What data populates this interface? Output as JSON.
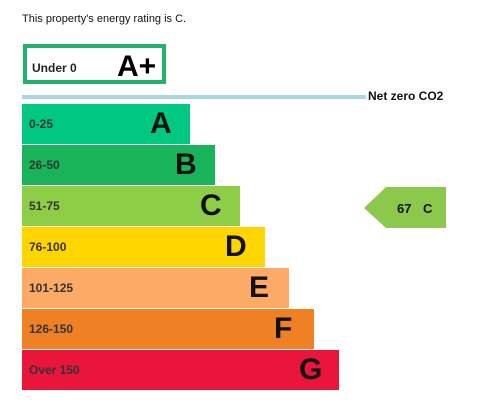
{
  "heading": "This property's energy rating is C.",
  "net_zero_label": "Net zero CO2",
  "colors": {
    "aplus_border": "#1fb36b",
    "net_zero_line": "#a8d6e3",
    "current_arrow": "#8cc84b"
  },
  "chart_data": {
    "type": "bar",
    "aplus": {
      "range": "Under 0",
      "letter": "A+"
    },
    "bands": [
      {
        "range": "0-25",
        "letter": "A",
        "color": "#00c781"
      },
      {
        "range": "26-50",
        "letter": "B",
        "color": "#19b459"
      },
      {
        "range": "51-75",
        "letter": "C",
        "color": "#8dce46"
      },
      {
        "range": "76-100",
        "letter": "D",
        "color": "#ffd500"
      },
      {
        "range": "101-125",
        "letter": "E",
        "color": "#fcaa65"
      },
      {
        "range": "126-150",
        "letter": "F",
        "color": "#ef8023"
      },
      {
        "range": "Over 150",
        "letter": "G",
        "color": "#e9153b"
      }
    ],
    "current": {
      "score": "67",
      "letter": "C",
      "band_index": 2
    }
  }
}
